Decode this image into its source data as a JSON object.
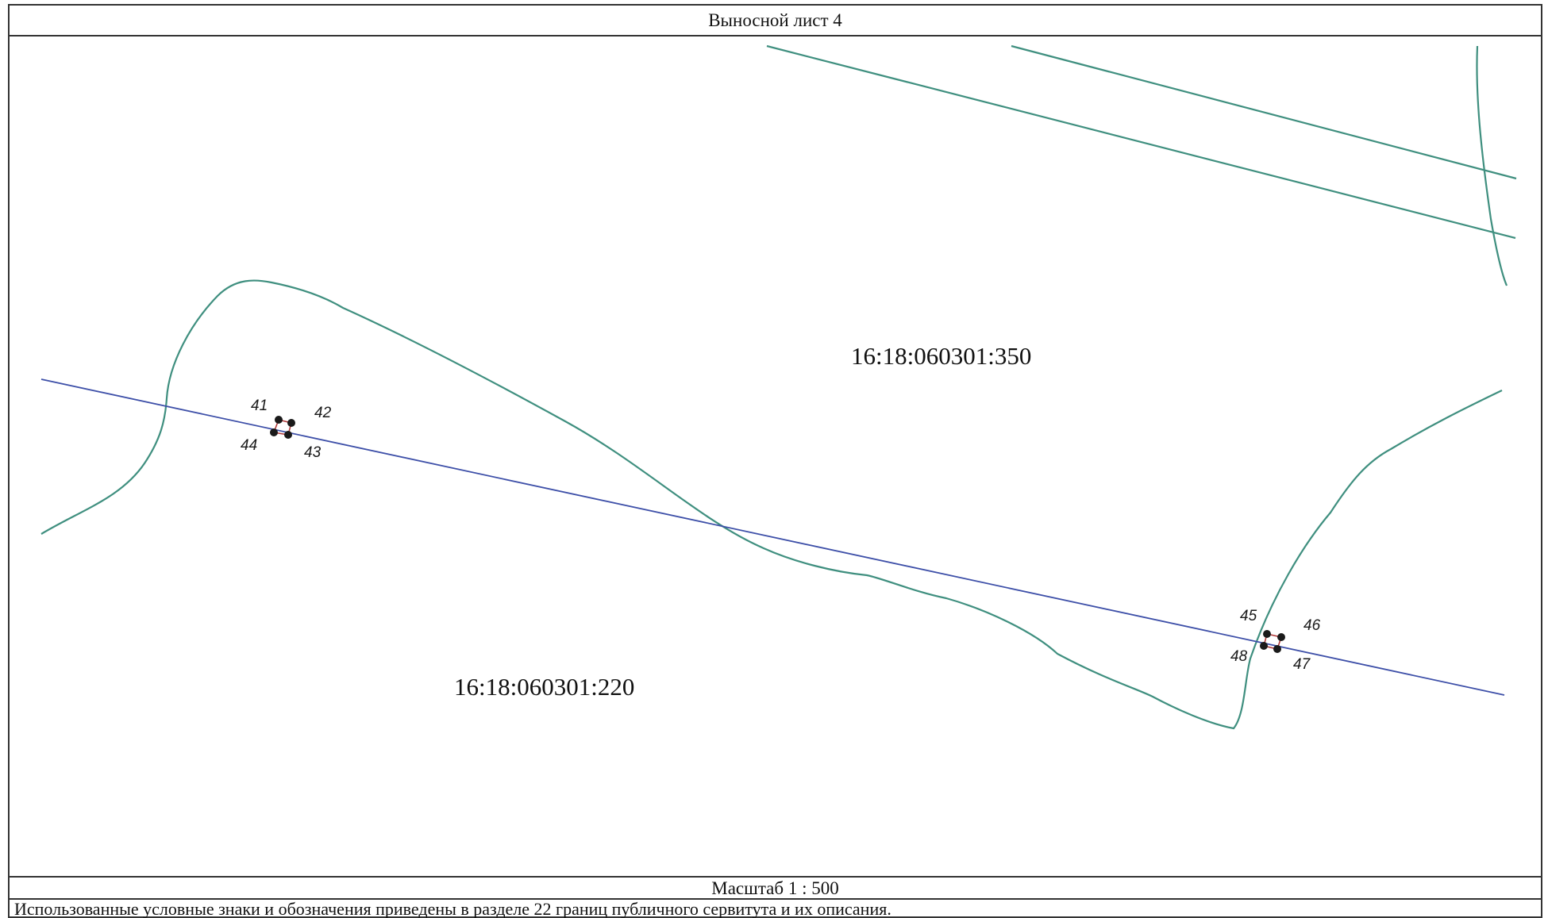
{
  "sheet": {
    "title": "Выносной лист 4",
    "scale": "Масштаб 1 : 500",
    "note": "Использованные условные знаки и обозначения приведены в разделе 22 границ публичного сервитута и их описания."
  },
  "map": {
    "parcels": [
      {
        "id": "parcel-350",
        "label": "16:18:060301:350"
      },
      {
        "id": "parcel-220",
        "label": "16:18:060301:220"
      }
    ],
    "points": {
      "p41": "41",
      "p42": "42",
      "p43": "43",
      "p44": "44",
      "p45": "45",
      "p46": "46",
      "p47": "47",
      "p48": "48"
    },
    "colors": {
      "parcel_boundary": "#3f8f7f",
      "servitude_line": "#3d4fa8",
      "servitude_outline": "#b03a3a",
      "point_marker": "#1a1a1a"
    }
  }
}
